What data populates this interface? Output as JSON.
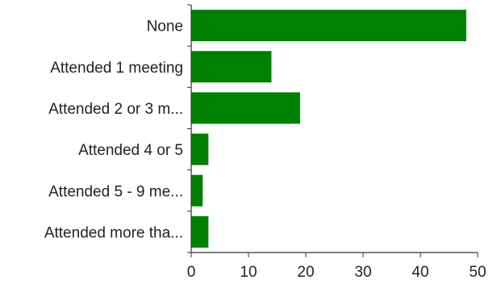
{
  "chart_data": {
    "type": "bar",
    "orientation": "horizontal",
    "categories": [
      "None",
      "Attended 1 meeting",
      "Attended 2 or 3 m...",
      "Attended 4 or 5",
      "Attended 5 - 9 me...",
      "Attended more tha..."
    ],
    "values": [
      48,
      14,
      19,
      3,
      2,
      3
    ],
    "xlim": [
      0,
      50
    ],
    "xticks": [
      0,
      10,
      20,
      30,
      40,
      50
    ],
    "title": "",
    "xlabel": "",
    "ylabel": "",
    "grid": false,
    "legend": "none",
    "bar_color": "#008000",
    "axis_color": "#333333"
  }
}
